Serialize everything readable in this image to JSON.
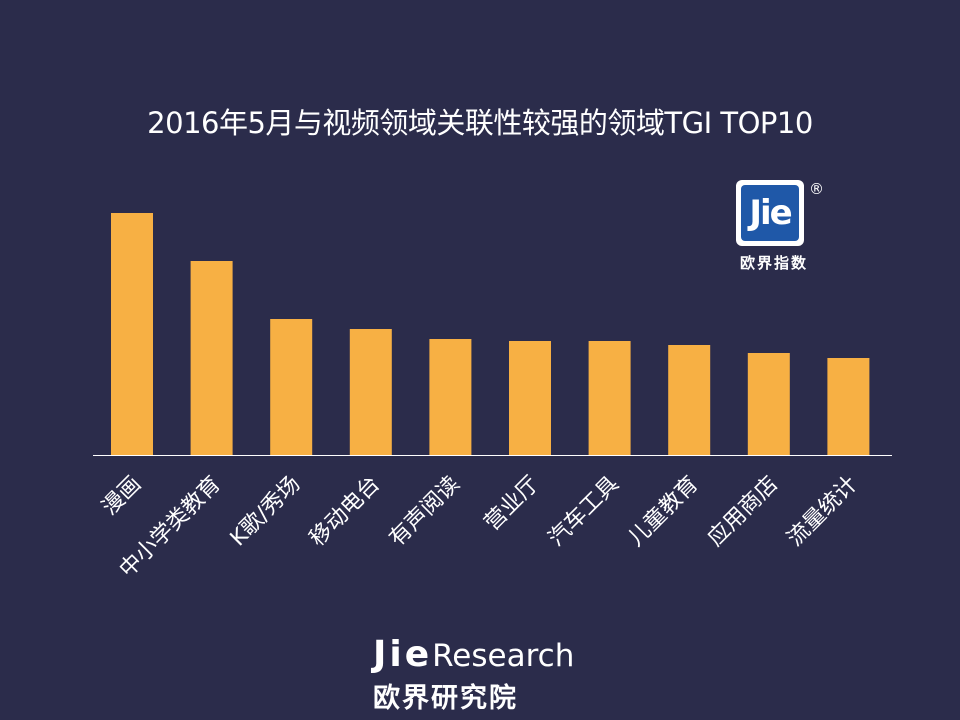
{
  "chart_data": {
    "type": "bar",
    "title": "2016年5月与视频领域关联性较强的领域TGI TOP10",
    "categories": [
      "漫画",
      "中小学类教育",
      "K歌/秀场",
      "移动电台",
      "有声阅读",
      "营业厅",
      "汽车工具",
      "儿童教育",
      "应用商店",
      "流量统计"
    ],
    "values": [
      242,
      194,
      136,
      126,
      116,
      114,
      114,
      110,
      102,
      97
    ],
    "ylim": [
      0,
      260
    ],
    "xlabel": "",
    "ylabel": "",
    "grid": false,
    "bar_color": "#f7b044",
    "axis_color": "#ffffff"
  },
  "logo": {
    "mark": "Jie",
    "registered": "®",
    "caption": "欧界指数"
  },
  "footer": {
    "brand_bold": "Jie",
    "brand_light": "Research",
    "brand_cn": "欧界研究院"
  },
  "colors": {
    "background": "#2b2c4b",
    "logo_blue": "#1f58a8"
  }
}
